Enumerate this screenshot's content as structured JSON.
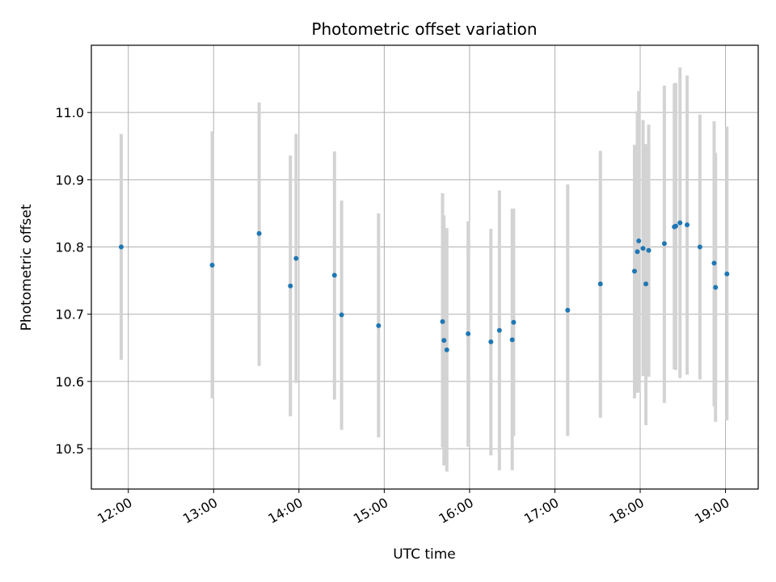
{
  "chart_data": {
    "type": "scatter",
    "title": "Photometric offset variation",
    "xlabel": "UTC time",
    "ylabel": "Photometric offset",
    "x_ticks": [
      "12:00",
      "13:00",
      "14:00",
      "15:00",
      "16:00",
      "17:00",
      "18:00",
      "19:00"
    ],
    "y_ticks": [
      "10.5",
      "10.6",
      "10.7",
      "10.8",
      "10.9",
      "11.0"
    ],
    "xlim": [
      "11:34",
      "19:23"
    ],
    "ylim": [
      10.44,
      11.1
    ],
    "grid": true,
    "errorbar_color": "#d3d3d3",
    "point_color": "#1f77b4",
    "points": [
      {
        "t": "11:55",
        "y": 10.8,
        "lo": 10.632,
        "hi": 10.968
      },
      {
        "t": "12:59",
        "y": 10.773,
        "lo": 10.575,
        "hi": 10.972
      },
      {
        "t": "13:32",
        "y": 10.82,
        "lo": 10.623,
        "hi": 11.015
      },
      {
        "t": "13:54",
        "y": 10.742,
        "lo": 10.548,
        "hi": 10.936
      },
      {
        "t": "13:58",
        "y": 10.783,
        "lo": 10.598,
        "hi": 10.968
      },
      {
        "t": "14:25",
        "y": 10.758,
        "lo": 10.573,
        "hi": 10.942
      },
      {
        "t": "14:30",
        "y": 10.699,
        "lo": 10.528,
        "hi": 10.869
      },
      {
        "t": "14:56",
        "y": 10.683,
        "lo": 10.517,
        "hi": 10.85
      },
      {
        "t": "15:41",
        "y": 10.689,
        "lo": 10.502,
        "hi": 10.88
      },
      {
        "t": "15:42",
        "y": 10.661,
        "lo": 10.475,
        "hi": 10.847
      },
      {
        "t": "15:44",
        "y": 10.647,
        "lo": 10.466,
        "hi": 10.828
      },
      {
        "t": "15:59",
        "y": 10.671,
        "lo": 10.503,
        "hi": 10.838
      },
      {
        "t": "16:15",
        "y": 10.659,
        "lo": 10.49,
        "hi": 10.827
      },
      {
        "t": "16:21",
        "y": 10.676,
        "lo": 10.468,
        "hi": 10.884
      },
      {
        "t": "16:30",
        "y": 10.662,
        "lo": 10.468,
        "hi": 10.857
      },
      {
        "t": "16:31",
        "y": 10.688,
        "lo": 10.519,
        "hi": 10.857
      },
      {
        "t": "17:09",
        "y": 10.706,
        "lo": 10.519,
        "hi": 10.893
      },
      {
        "t": "17:32",
        "y": 10.745,
        "lo": 10.546,
        "hi": 10.943
      },
      {
        "t": "17:56",
        "y": 10.764,
        "lo": 10.575,
        "hi": 10.952
      },
      {
        "t": "17:58",
        "y": 10.793,
        "lo": 10.583,
        "hi": 11.002
      },
      {
        "t": "17:59",
        "y": 10.809,
        "lo": 10.585,
        "hi": 11.032
      },
      {
        "t": "18:02",
        "y": 10.798,
        "lo": 10.608,
        "hi": 10.989
      },
      {
        "t": "18:04",
        "y": 10.745,
        "lo": 10.535,
        "hi": 10.953
      },
      {
        "t": "18:06",
        "y": 10.795,
        "lo": 10.607,
        "hi": 10.982
      },
      {
        "t": "18:17",
        "y": 10.805,
        "lo": 10.568,
        "hi": 11.04
      },
      {
        "t": "18:24",
        "y": 10.83,
        "lo": 10.618,
        "hi": 11.043
      },
      {
        "t": "18:25",
        "y": 10.831,
        "lo": 10.617,
        "hi": 11.044
      },
      {
        "t": "18:28",
        "y": 10.836,
        "lo": 10.605,
        "hi": 11.067
      },
      {
        "t": "18:33",
        "y": 10.833,
        "lo": 10.61,
        "hi": 11.055
      },
      {
        "t": "18:42",
        "y": 10.8,
        "lo": 10.603,
        "hi": 10.997
      },
      {
        "t": "18:52",
        "y": 10.776,
        "lo": 10.563,
        "hi": 10.987
      },
      {
        "t": "18:53",
        "y": 10.74,
        "lo": 10.54,
        "hi": 10.94
      },
      {
        "t": "19:01",
        "y": 10.76,
        "lo": 10.542,
        "hi": 10.979
      }
    ]
  }
}
